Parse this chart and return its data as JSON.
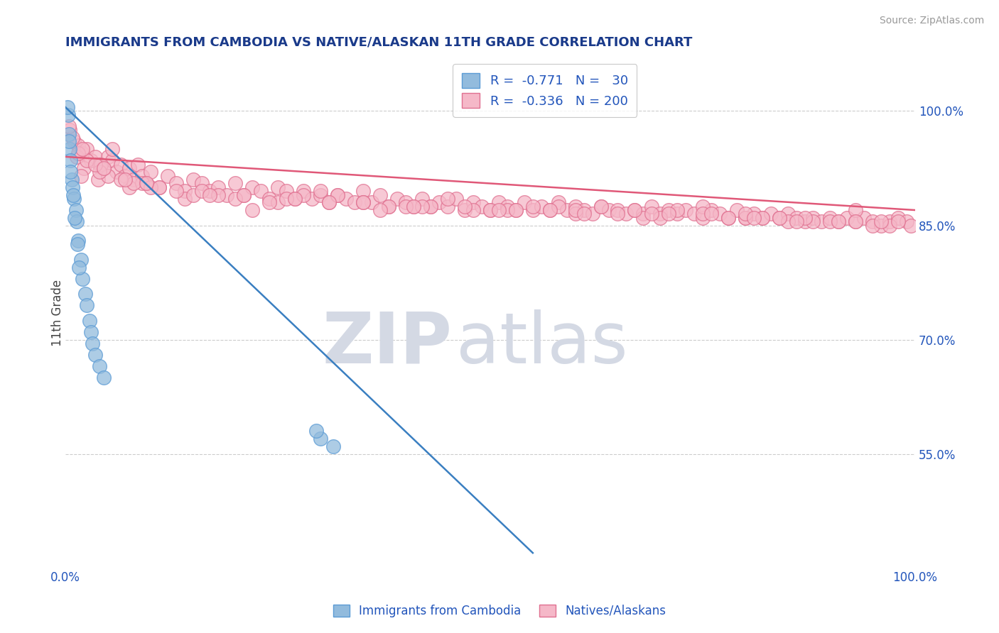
{
  "title": "IMMIGRANTS FROM CAMBODIA VS NATIVE/ALASKAN 11TH GRADE CORRELATION CHART",
  "source_text": "Source: ZipAtlas.com",
  "ylabel": "11th Grade",
  "xlim": [
    0.0,
    100.0
  ],
  "ylim": [
    40.0,
    107.0
  ],
  "right_ytick_values": [
    100.0,
    85.0,
    70.0,
    55.0
  ],
  "watermark_ZIP": "ZIP",
  "watermark_atlas": "atlas",
  "watermark_color": "#d4d9e4",
  "legend_R1": "-0.771",
  "legend_N1": "30",
  "legend_R2": "-0.336",
  "legend_N2": "200",
  "blue_color": "#92bbdd",
  "pink_color": "#f5b8c8",
  "blue_edge_color": "#5b9bd5",
  "pink_edge_color": "#e07090",
  "blue_line_color": "#3a7fc1",
  "pink_line_color": "#e05878",
  "background_color": "#ffffff",
  "grid_color": "#cccccc",
  "title_color": "#1a3a8a",
  "axis_label_color": "#2255bb",
  "blue_trend_x0": 0.0,
  "blue_trend_y0": 100.5,
  "blue_trend_x1": 55.0,
  "blue_trend_y1": 42.0,
  "pink_trend_x0": 0.0,
  "pink_trend_y0": 94.0,
  "pink_trend_x1": 100.0,
  "pink_trend_y1": 87.0,
  "blue_scatter_x": [
    0.3,
    0.4,
    0.5,
    0.6,
    0.7,
    0.8,
    1.0,
    1.2,
    1.3,
    1.5,
    1.8,
    2.0,
    2.3,
    2.5,
    2.8,
    3.0,
    3.2,
    3.5,
    4.0,
    4.5,
    0.2,
    0.4,
    0.6,
    0.9,
    1.1,
    1.4,
    1.6,
    30.0,
    31.5,
    29.5
  ],
  "blue_scatter_y": [
    99.5,
    97.0,
    95.0,
    93.5,
    91.0,
    90.0,
    88.5,
    87.0,
    85.5,
    83.0,
    80.5,
    78.0,
    76.0,
    74.5,
    72.5,
    71.0,
    69.5,
    68.0,
    66.5,
    65.0,
    100.5,
    96.0,
    92.0,
    89.0,
    86.0,
    82.5,
    79.5,
    57.0,
    56.0,
    58.0
  ],
  "pink_scatter_x": [
    0.5,
    1.0,
    1.5,
    2.0,
    2.5,
    3.0,
    3.5,
    4.0,
    4.5,
    5.0,
    5.5,
    6.0,
    6.5,
    7.0,
    7.5,
    8.0,
    8.5,
    9.0,
    9.5,
    10.0,
    11.0,
    12.0,
    13.0,
    14.0,
    15.0,
    16.0,
    17.0,
    18.0,
    19.0,
    20.0,
    21.0,
    22.0,
    23.0,
    24.0,
    25.0,
    26.0,
    27.0,
    28.0,
    29.0,
    30.0,
    31.0,
    32.0,
    33.0,
    34.0,
    35.0,
    36.0,
    37.0,
    38.0,
    39.0,
    40.0,
    41.0,
    42.0,
    43.0,
    44.0,
    45.0,
    46.0,
    47.0,
    48.0,
    49.0,
    50.0,
    51.0,
    52.0,
    53.0,
    54.0,
    55.0,
    56.0,
    57.0,
    58.0,
    59.0,
    60.0,
    61.0,
    62.0,
    63.0,
    64.0,
    65.0,
    66.0,
    67.0,
    68.0,
    69.0,
    70.0,
    71.0,
    72.0,
    73.0,
    74.0,
    75.0,
    76.0,
    77.0,
    78.0,
    79.0,
    80.0,
    81.0,
    82.0,
    83.0,
    84.0,
    85.0,
    86.0,
    87.0,
    88.0,
    89.0,
    90.0,
    91.0,
    92.0,
    93.0,
    94.0,
    95.0,
    96.0,
    97.0,
    98.0,
    99.0,
    99.5,
    0.8,
    1.3,
    2.2,
    3.8,
    5.5,
    7.5,
    0.4,
    1.8,
    4.2,
    9.0,
    14.0,
    22.0,
    28.0,
    35.0,
    43.0,
    52.0,
    60.0,
    68.0,
    75.0,
    82.0,
    88.0,
    93.0,
    97.0,
    2.5,
    5.0,
    10.0,
    15.0,
    20.0,
    25.0,
    30.0,
    35.0,
    40.0,
    45.0,
    50.0,
    55.0,
    60.0,
    65.0,
    70.0,
    75.0,
    80.0,
    85.0,
    90.0,
    95.0,
    1.5,
    4.0,
    8.0,
    16.0,
    24.0,
    32.0,
    42.0,
    53.0,
    63.0,
    72.0,
    80.0,
    87.0,
    93.0,
    98.0,
    3.5,
    6.5,
    11.0,
    18.0,
    26.0,
    38.0,
    48.0,
    58.0,
    67.0,
    76.0,
    84.0,
    91.0,
    96.0,
    2.0,
    7.0,
    13.0,
    21.0,
    31.0,
    41.0,
    51.0,
    61.0,
    71.0,
    81.0,
    4.5,
    9.5,
    17.0,
    27.0,
    37.0,
    47.0,
    57.0,
    69.0,
    78.0,
    86.0
  ],
  "pink_scatter_y": [
    97.5,
    96.0,
    95.5,
    94.5,
    95.0,
    93.5,
    94.0,
    93.0,
    92.5,
    94.0,
    93.5,
    92.0,
    93.0,
    91.5,
    92.5,
    91.0,
    93.0,
    91.5,
    90.5,
    92.0,
    90.0,
    91.5,
    90.5,
    89.5,
    91.0,
    90.5,
    89.5,
    90.0,
    89.0,
    90.5,
    89.0,
    90.0,
    89.5,
    88.5,
    90.0,
    89.5,
    88.5,
    89.5,
    88.5,
    89.0,
    88.0,
    89.0,
    88.5,
    88.0,
    89.5,
    88.0,
    89.0,
    87.5,
    88.5,
    88.0,
    87.5,
    88.5,
    87.5,
    88.0,
    87.5,
    88.5,
    87.0,
    88.0,
    87.5,
    87.0,
    88.0,
    87.5,
    87.0,
    88.0,
    87.0,
    87.5,
    87.0,
    88.0,
    87.0,
    87.5,
    87.0,
    86.5,
    87.5,
    87.0,
    87.0,
    86.5,
    87.0,
    86.5,
    87.5,
    86.5,
    87.0,
    86.5,
    87.0,
    86.5,
    86.0,
    87.0,
    86.5,
    86.0,
    87.0,
    86.0,
    86.5,
    86.0,
    86.5,
    86.0,
    86.5,
    86.0,
    85.5,
    86.0,
    85.5,
    86.0,
    85.5,
    86.0,
    85.5,
    86.0,
    85.5,
    85.0,
    85.5,
    86.0,
    85.5,
    85.0,
    96.5,
    94.0,
    92.5,
    91.0,
    95.0,
    90.0,
    98.0,
    91.5,
    93.0,
    90.5,
    88.5,
    87.0,
    89.0,
    88.0,
    87.5,
    87.0,
    86.5,
    86.0,
    87.5,
    86.0,
    85.5,
    87.0,
    85.0,
    93.5,
    91.5,
    90.0,
    89.0,
    88.5,
    88.0,
    89.5,
    88.0,
    87.5,
    88.5,
    87.0,
    87.5,
    87.0,
    86.5,
    86.0,
    86.5,
    86.0,
    85.5,
    85.5,
    85.0,
    94.5,
    92.0,
    90.5,
    89.5,
    88.0,
    89.0,
    87.5,
    87.0,
    87.5,
    87.0,
    86.5,
    86.0,
    85.5,
    85.5,
    93.0,
    91.0,
    90.0,
    89.0,
    88.5,
    87.5,
    87.0,
    87.5,
    87.0,
    86.5,
    86.0,
    85.5,
    85.5,
    95.0,
    91.0,
    89.5,
    89.0,
    88.0,
    87.5,
    87.0,
    86.5,
    86.5,
    86.0,
    92.5,
    90.5,
    89.0,
    88.5,
    87.0,
    87.5,
    87.0,
    86.5,
    86.0,
    85.5
  ]
}
